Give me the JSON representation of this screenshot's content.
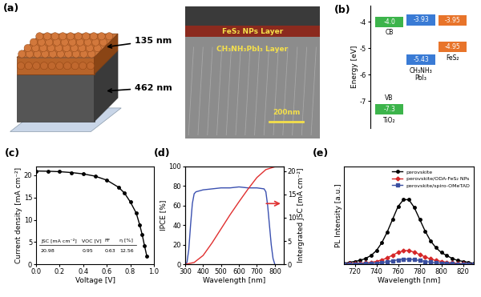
{
  "schematic": {
    "label": "(a)",
    "layers": [
      {
        "thickness": "135 nm",
        "name": "FeS₂ NPs Layer"
      },
      {
        "thickness": "462 nm",
        "name": "CH₃NH₃PbI₃ Layer"
      }
    ],
    "scale_bar": "200nm"
  },
  "energy_diagram": {
    "label": "(b)",
    "y_label": "Energy [eV]",
    "ylim": [
      -8,
      -3.4
    ],
    "yticks": [
      -7,
      -6,
      -5,
      -4
    ],
    "band_labels": {
      "cb": "CB",
      "vb": "VB"
    },
    "materials": [
      {
        "name": "TiO₂",
        "cb": -4.0,
        "vb": -7.3,
        "color": "#3cb44b"
      },
      {
        "name": "CH₃NH₃\nPbI₃",
        "cb": -3.93,
        "vb": -5.43,
        "color": "#3a7bd5"
      },
      {
        "name": "FeS₂",
        "cb": -3.95,
        "vb": -4.95,
        "color": "#e8742a"
      }
    ]
  },
  "chart_data": [
    {
      "label": "(c)",
      "type": "line",
      "x_label": "Voltage [V]",
      "y_label": "Current density [mA cm⁻²]",
      "x": [
        0.0,
        0.1,
        0.2,
        0.3,
        0.4,
        0.5,
        0.6,
        0.7,
        0.75,
        0.8,
        0.85,
        0.88,
        0.9,
        0.92,
        0.94
      ],
      "values": [
        20.95,
        20.9,
        20.8,
        20.6,
        20.3,
        19.8,
        18.9,
        17.3,
        16.0,
        14.0,
        11.5,
        8.8,
        6.7,
        4.2,
        1.8
      ],
      "color": "#000000",
      "marker": "circle",
      "line_style": "solid",
      "xlim": [
        0.0,
        1.0
      ],
      "xticks": [
        0.0,
        0.2,
        0.4,
        0.6,
        0.8,
        1.0
      ],
      "ylim": [
        0,
        22
      ],
      "yticks": [
        0,
        5,
        10,
        15,
        20
      ],
      "table": {
        "header": [
          "JSC [mA cm⁻²]",
          "VOC [V]",
          "FF",
          "η [%]"
        ],
        "rows": [
          [
            20.98,
            0.95,
            0.63,
            12.56
          ]
        ]
      }
    },
    {
      "label": "(d)",
      "type": "line",
      "x_label": "Wavelength [nm]",
      "y_label": "IPCE [%]",
      "y2_label": "Intergrated JSC [mA cm⁻²]",
      "xlim": [
        300,
        850
      ],
      "xticks": [
        300,
        400,
        500,
        600,
        700,
        800
      ],
      "ylim": [
        0,
        100
      ],
      "yticks": [
        0,
        20,
        40,
        60,
        80,
        100
      ],
      "y2lim": [
        0,
        21
      ],
      "y2ticks": [
        0,
        5,
        10,
        15,
        20
      ],
      "series": [
        {
          "color": "#3a50b0",
          "line_style": "solid",
          "x": [
            300,
            310,
            320,
            330,
            340,
            350,
            360,
            380,
            400,
            450,
            500,
            550,
            600,
            650,
            700,
            740,
            750,
            760,
            770,
            780,
            790,
            800
          ],
          "values": [
            0,
            2,
            15,
            40,
            62,
            72,
            74,
            75,
            76,
            77,
            78,
            78,
            79,
            78,
            78,
            77,
            74,
            60,
            40,
            20,
            6,
            0
          ]
        },
        {
          "color": "#e03030",
          "line_style": "solid",
          "axis": "y2",
          "x": [
            300,
            350,
            400,
            450,
            500,
            550,
            600,
            650,
            700,
            750,
            800,
            850
          ],
          "values": [
            0,
            0.4,
            1.9,
            4.6,
            7.6,
            10.6,
            13.4,
            16.1,
            18.6,
            20.3,
            20.9,
            21.0
          ]
        }
      ]
    },
    {
      "label": "(e)",
      "type": "line",
      "x_label": "Wavelength [nm]",
      "y_label": "PL Intensity [a.u.]",
      "xlim": [
        710,
        830
      ],
      "xticks": [
        720,
        740,
        760,
        780,
        800,
        820
      ],
      "ylim": [
        0,
        100
      ],
      "yticks": [],
      "tick_labels": "x",
      "legend": "upper right",
      "x": [
        710,
        715,
        720,
        725,
        730,
        735,
        740,
        745,
        750,
        755,
        760,
        765,
        770,
        775,
        780,
        785,
        790,
        795,
        800,
        805,
        810,
        815,
        820,
        825,
        830
      ],
      "series": [
        {
          "name": "perovskite",
          "color": "#000000",
          "marker": "circle",
          "line_style": "solid",
          "values": [
            1,
            2,
            3,
            4,
            6,
            9,
            14,
            22,
            33,
            46,
            59,
            66,
            66,
            58,
            46,
            34,
            24,
            17,
            12,
            9,
            6,
            4,
            3,
            2,
            1
          ]
        },
        {
          "name": "perovskite/ODA-FeS₂ NPs",
          "color": "#d62728",
          "marker": "diamond",
          "line_style": "solid",
          "values": [
            0.5,
            0.7,
            1,
            1.2,
            1.5,
            2,
            3,
            4.5,
            6.5,
            9.5,
            12,
            14,
            14,
            12.5,
            10,
            7.5,
            5.5,
            4,
            3,
            2,
            1.5,
            1,
            0.7,
            0.5,
            0.3
          ]
        },
        {
          "name": "perovskite/spiro-OMeTAD",
          "color": "#3a4fa0",
          "marker": "square",
          "line_style": "solid",
          "values": [
            0.2,
            0.3,
            0.4,
            0.5,
            0.7,
            0.9,
            1.2,
            1.8,
            2.6,
            3.6,
            4.6,
            5.3,
            5.3,
            4.8,
            3.9,
            3,
            2.2,
            1.6,
            1.2,
            0.9,
            0.6,
            0.4,
            0.3,
            0.2,
            0.1
          ]
        }
      ]
    }
  ]
}
